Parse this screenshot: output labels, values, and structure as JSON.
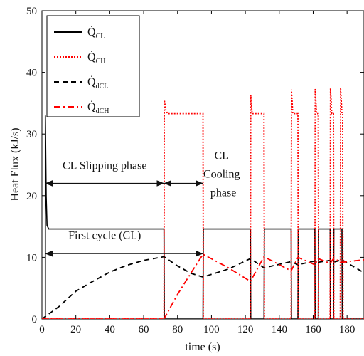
{
  "chart_data": {
    "type": "line",
    "xlabel": "time (s)",
    "ylabel": "Heat Flux (kJ/s)",
    "xlim": [
      0,
      190
    ],
    "ylim": [
      0,
      50
    ],
    "xticks": [
      0,
      20,
      40,
      60,
      80,
      100,
      120,
      140,
      160,
      180
    ],
    "yticks": [
      0,
      10,
      20,
      30,
      40,
      50
    ],
    "series": [
      {
        "name": "Q̇CL",
        "legend_main": "Q̇",
        "legend_sub": "CL",
        "color": "#000000",
        "dash": "solid",
        "points": [
          [
            0,
            0
          ],
          [
            2,
            0
          ],
          [
            2,
            33
          ],
          [
            2.5,
            20
          ],
          [
            3,
            15.2
          ],
          [
            4,
            14.6
          ],
          [
            72,
            14.6
          ],
          [
            72.2,
            0
          ],
          [
            95,
            0
          ],
          [
            95.2,
            14.6
          ],
          [
            97,
            14.6
          ],
          [
            123,
            14.6
          ],
          [
            123.2,
            0
          ],
          [
            131,
            0
          ],
          [
            131.2,
            14.6
          ],
          [
            147,
            14.6
          ],
          [
            147.2,
            0
          ],
          [
            151,
            0
          ],
          [
            151.2,
            14.6
          ],
          [
            161,
            14.6
          ],
          [
            161.2,
            0
          ],
          [
            163,
            0
          ],
          [
            163.2,
            14.6
          ],
          [
            170,
            14.6
          ],
          [
            170.2,
            0
          ],
          [
            172,
            0
          ],
          [
            172.2,
            14.6
          ],
          [
            177,
            14.6
          ],
          [
            177.2,
            0
          ],
          [
            190,
            0
          ]
        ]
      },
      {
        "name": "Q̇CH",
        "legend_main": "Q̇",
        "legend_sub": "CH",
        "color": "#ff0000",
        "dash": "dotted",
        "points": [
          [
            0,
            0
          ],
          [
            72,
            0
          ],
          [
            72.2,
            35.5
          ],
          [
            73,
            34
          ],
          [
            74,
            33.3
          ],
          [
            95,
            33.3
          ],
          [
            95.2,
            0
          ],
          [
            123,
            0
          ],
          [
            123.2,
            36.3
          ],
          [
            124,
            33.3
          ],
          [
            131,
            33.3
          ],
          [
            131.2,
            0
          ],
          [
            147,
            0
          ],
          [
            147.2,
            37.2
          ],
          [
            148,
            33.3
          ],
          [
            151,
            33.3
          ],
          [
            151.2,
            0
          ],
          [
            161,
            0
          ],
          [
            161.2,
            37.3
          ],
          [
            162,
            33.3
          ],
          [
            163,
            33.3
          ],
          [
            163.2,
            0
          ],
          [
            170,
            0
          ],
          [
            170.2,
            37.4
          ],
          [
            171,
            33.3
          ],
          [
            172,
            33.3
          ],
          [
            172.2,
            0
          ],
          [
            176,
            0
          ],
          [
            176.2,
            37.5
          ],
          [
            177,
            33.3
          ],
          [
            177.4,
            33.3
          ],
          [
            177.6,
            0
          ],
          [
            190,
            0
          ]
        ]
      },
      {
        "name": "Q̇dCL",
        "legend_main": "Q̇",
        "legend_sub": "dCL",
        "color": "#000000",
        "dash": "dashed",
        "points": [
          [
            0,
            0
          ],
          [
            5,
            1
          ],
          [
            10,
            2
          ],
          [
            20,
            4.5
          ],
          [
            30,
            6.1
          ],
          [
            40,
            7.6
          ],
          [
            50,
            8.7
          ],
          [
            60,
            9.5
          ],
          [
            70,
            10
          ],
          [
            72,
            10.1
          ],
          [
            80,
            8.6
          ],
          [
            88,
            7.4
          ],
          [
            95,
            6.8
          ],
          [
            110,
            8.1
          ],
          [
            123,
            9.8
          ],
          [
            131,
            8.3
          ],
          [
            147,
            9.3
          ],
          [
            151,
            8.8
          ],
          [
            161,
            9.4
          ],
          [
            163,
            9.2
          ],
          [
            170,
            9.5
          ],
          [
            172,
            9.2
          ],
          [
            177,
            9.6
          ],
          [
            190,
            7.5
          ]
        ]
      },
      {
        "name": "Q̇dCH",
        "legend_main": "Q̇",
        "legend_sub": "dCH",
        "color": "#ff0000",
        "dash": "dashdot",
        "points": [
          [
            0,
            0
          ],
          [
            72,
            0
          ],
          [
            80,
            4
          ],
          [
            88,
            7.5
          ],
          [
            95,
            10.5
          ],
          [
            110,
            8.3
          ],
          [
            123,
            6.1
          ],
          [
            131,
            10.1
          ],
          [
            147,
            7.8
          ],
          [
            151,
            10
          ],
          [
            161,
            8.8
          ],
          [
            163,
            9.8
          ],
          [
            170,
            9
          ],
          [
            172,
            9.8
          ],
          [
            177,
            9.2
          ],
          [
            190,
            9.6
          ]
        ]
      }
    ],
    "annotations": [
      {
        "text": "CL Slipping phase",
        "x": 37,
        "y": 24.3
      },
      {
        "text": "CL",
        "x": 106,
        "y": 25.9
      },
      {
        "text": "Cooling",
        "x": 106,
        "y": 22.9
      },
      {
        "text": "phase",
        "x": 107,
        "y": 19.9
      },
      {
        "text": "First cycle (CL)",
        "x": 37,
        "y": 13
      }
    ],
    "arrows": [
      {
        "x1": 2,
        "x2": 72,
        "y": 22
      },
      {
        "x1": 72,
        "x2": 95,
        "y": 22
      },
      {
        "x1": 2,
        "x2": 95,
        "y": 10.6
      }
    ],
    "legend": {
      "position": "top-left"
    }
  }
}
